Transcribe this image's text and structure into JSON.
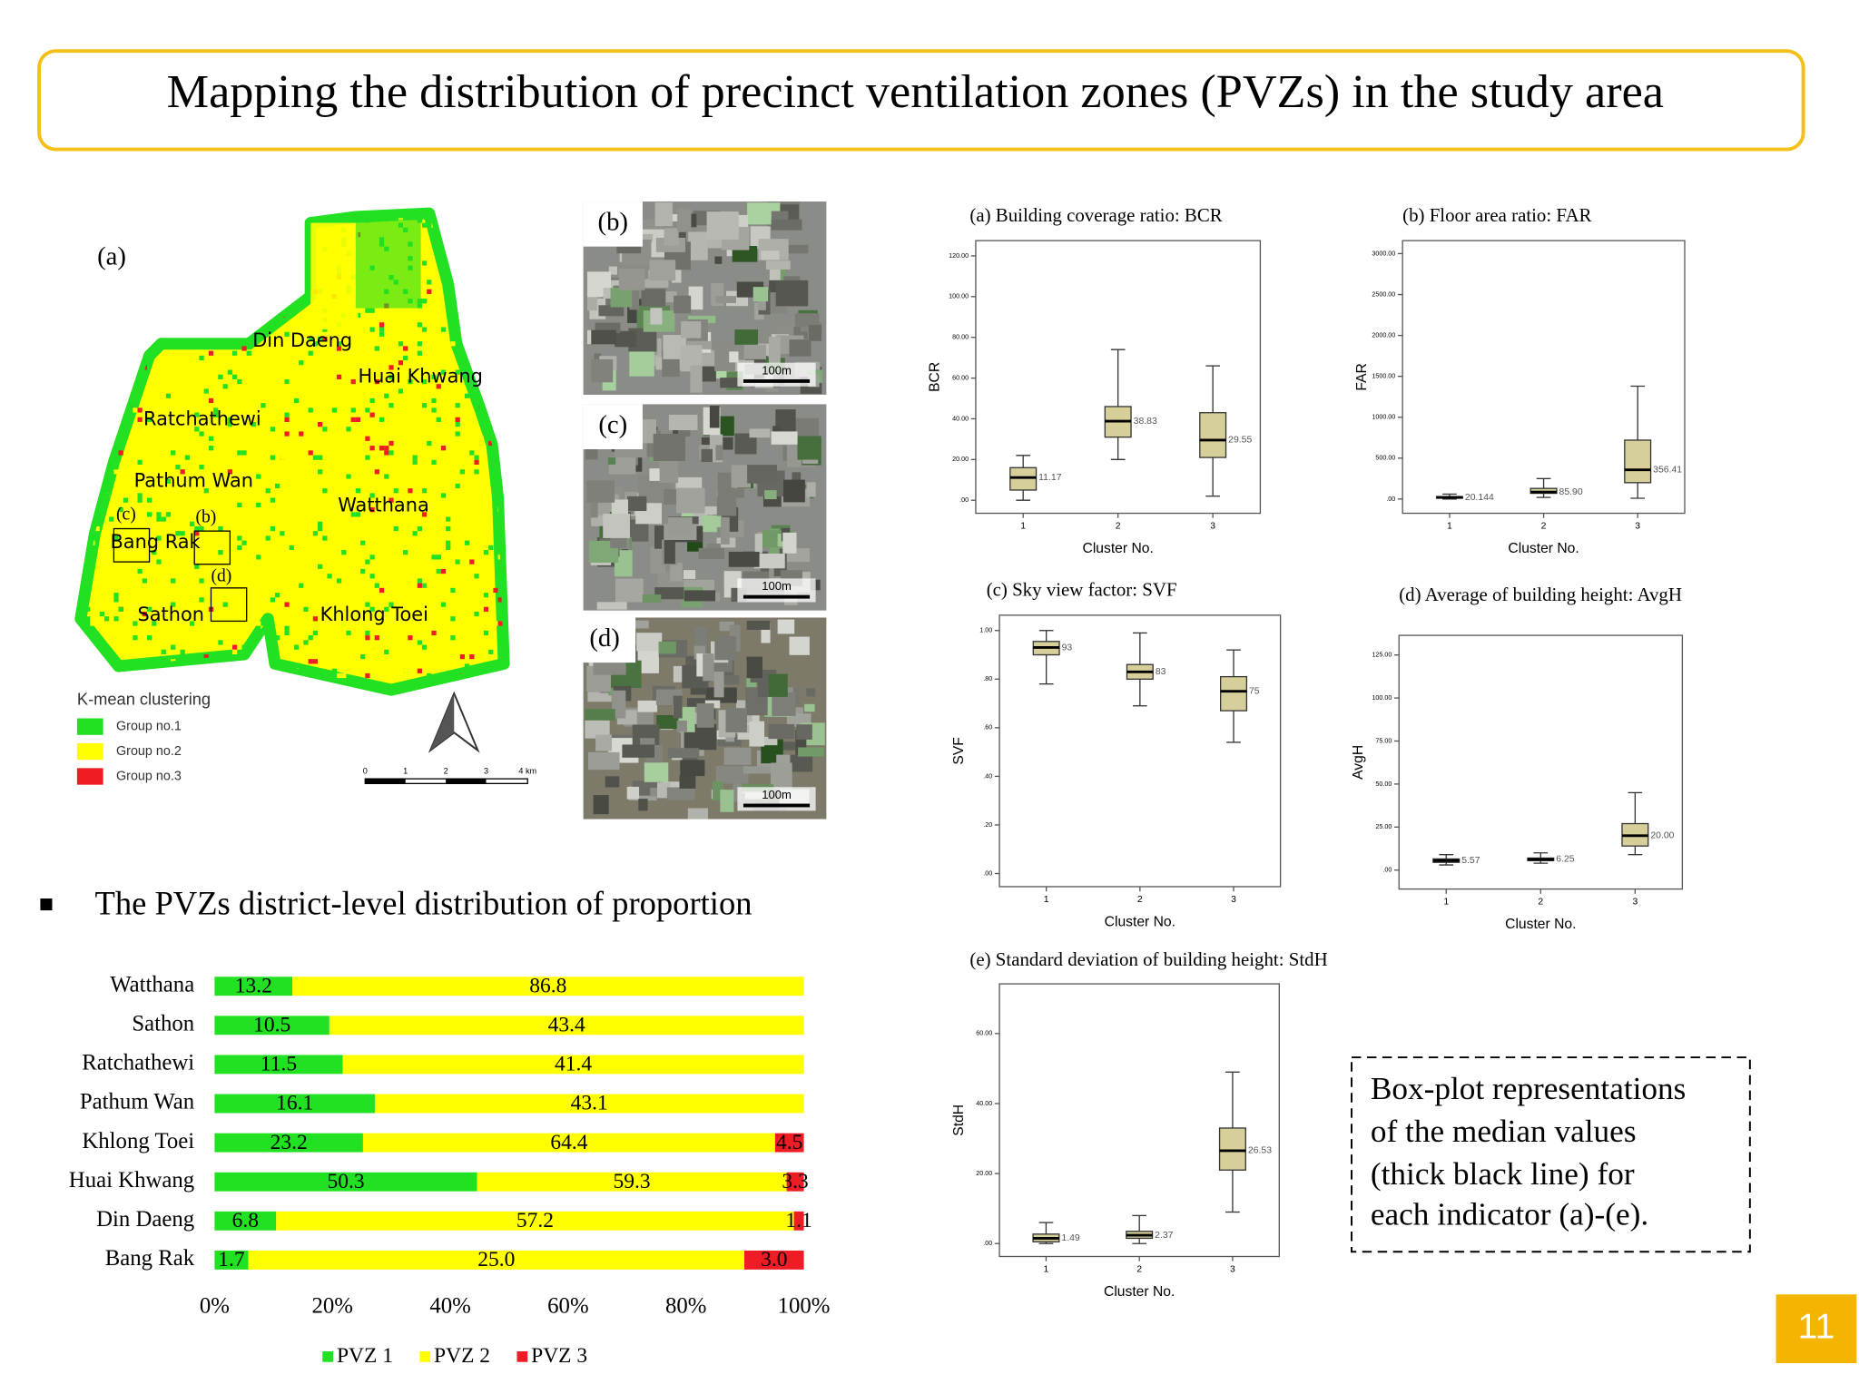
{
  "header": {
    "title": "Mapping the distribution of precinct ventilation zones (PVZs) in the study area"
  },
  "map": {
    "panel_label": "(a)",
    "districts": [
      "Din Daeng",
      "Huai Khwang",
      "Ratchathewi",
      "Pathum Wan",
      "Watthana",
      "Bang Rak",
      "Sathon",
      "Khlong Toei"
    ],
    "inset_labels": [
      "(c)",
      "(b)",
      "(d)"
    ],
    "legend_title": "K-mean clustering",
    "legend": [
      {
        "name": "Group no.1",
        "color": "#22e022"
      },
      {
        "name": "Group no.2",
        "color": "#ffff00"
      },
      {
        "name": "Group no.3",
        "color": "#ee1c24"
      }
    ],
    "scale_labels": [
      "0",
      "1",
      "2",
      "3",
      "4 km"
    ]
  },
  "photos": [
    {
      "label": "(b)",
      "scale": "100m"
    },
    {
      "label": "(c)",
      "scale": "100m"
    },
    {
      "label": "(d)",
      "scale": "100m"
    }
  ],
  "bullet": "The PVZs district-level distribution of proportion",
  "chart_data": [
    {
      "type": "bar",
      "orientation": "horizontal",
      "stack": "percent",
      "categories": [
        "Watthana",
        "Sathon",
        "Ratchathewi",
        "Pathum Wan",
        "Khlong Toei",
        "Huai Khwang",
        "Din Daeng",
        "Bang Rak"
      ],
      "series": [
        {
          "name": "PVZ 1",
          "color": "#22e022",
          "values": [
            13.2,
            10.5,
            11.5,
            16.1,
            23.2,
            50.3,
            6.8,
            1.7
          ],
          "value_labels": [
            "13.2",
            "10.5",
            "11.5",
            "16.1",
            "23.2",
            "50.3",
            "6.8",
            "1.7"
          ]
        },
        {
          "name": "PVZ 2",
          "color": "#ffff00",
          "values": [
            86.8,
            43.4,
            41.4,
            43.1,
            64.4,
            59.3,
            57.2,
            25
          ],
          "value_labels": [
            "86.8",
            "43.4",
            "41.4",
            "43.1",
            "64.4",
            "59.3",
            "57.2",
            "25.0"
          ]
        },
        {
          "name": "PVZ 3",
          "color": "#ee1c24",
          "values": [
            null,
            null,
            null,
            null,
            4.5,
            3.3,
            1.1,
            3
          ],
          "value_labels": [
            null,
            null,
            null,
            null,
            "4.5",
            "3.3",
            "1.1",
            "3.0"
          ]
        }
      ],
      "xlim": [
        0,
        100
      ],
      "xticks": [
        {
          "value": 0,
          "label": "0%"
        },
        {
          "value": 20,
          "label": "20%"
        },
        {
          "value": 40,
          "label": "40%"
        },
        {
          "value": 60,
          "label": "60%"
        },
        {
          "value": 80,
          "label": "80%"
        },
        {
          "value": 100,
          "label": "100%"
        }
      ],
      "legend": "bottom"
    },
    {
      "type": "box",
      "title": "(a) Building coverage ratio: BCR",
      "y_label": "BCR",
      "x_label": "Cluster No.",
      "categories": [
        "1",
        "2",
        "3"
      ],
      "color": "#d6cf9a",
      "median": [
        11.17,
        38.83,
        29.55
      ],
      "median_labels": [
        "11.17",
        "38.83",
        "29.55"
      ],
      "q1": [
        5,
        31,
        21
      ],
      "q3": [
        16,
        46,
        43
      ],
      "whisker_low": [
        0,
        20,
        2
      ],
      "whisker_high": [
        22,
        74,
        66
      ],
      "ylim": [
        -6.4,
        127.5
      ],
      "yticks": [
        {
          "value": 0,
          "label": ".00"
        },
        {
          "value": 20,
          "label": "20.00"
        },
        {
          "value": 40,
          "label": "40.00"
        },
        {
          "value": 60,
          "label": "60.00"
        },
        {
          "value": 80,
          "label": "80.00"
        },
        {
          "value": 100,
          "label": "100.00"
        },
        {
          "value": 120,
          "label": "120.00"
        }
      ]
    },
    {
      "type": "box",
      "title": "(b) Floor area ratio: FAR",
      "y_label": "FAR",
      "x_label": "Cluster No.",
      "categories": [
        "1",
        "2",
        "3"
      ],
      "color": "#d6cf9a",
      "median": [
        20.144,
        85.9,
        356.41
      ],
      "median_labels": [
        "20.144",
        "85.90",
        "356.41"
      ],
      "q1": [
        10,
        70,
        200
      ],
      "q3": [
        30,
        130,
        720
      ],
      "whisker_low": [
        0,
        20,
        10
      ],
      "whisker_high": [
        60,
        250,
        1380
      ],
      "ylim": [
        -174,
        3159
      ],
      "yticks": [
        {
          "value": 0,
          "label": ".00"
        },
        {
          "value": 500,
          "label": "500.00"
        },
        {
          "value": 1000,
          "label": "1000.00"
        },
        {
          "value": 1500,
          "label": "1500.00"
        },
        {
          "value": 2000,
          "label": "2000.00"
        },
        {
          "value": 2500,
          "label": "2500.00"
        },
        {
          "value": 3000,
          "label": "3000.00"
        }
      ]
    },
    {
      "type": "box",
      "title": "(c) Sky view factor: SVF",
      "y_label": "SVF",
      "x_label": "Cluster No.",
      "categories": [
        "1",
        "2",
        "3"
      ],
      "color": "#d6cf9a",
      "median": [
        0.93,
        0.83,
        0.75
      ],
      "median_labels": [
        "93",
        "83",
        "75"
      ],
      "q1": [
        0.9,
        0.8,
        0.67
      ],
      "q3": [
        0.955,
        0.86,
        0.81
      ],
      "whisker_low": [
        0.78,
        0.69,
        0.54
      ],
      "whisker_high": [
        1,
        0.99,
        0.92
      ],
      "ylim": [
        -0.054,
        1.063
      ],
      "yticks": [
        {
          "value": 0,
          "label": ".00"
        },
        {
          "value": 0.2,
          "label": ".20"
        },
        {
          "value": 0.4,
          "label": ".40"
        },
        {
          "value": 0.6,
          "label": ".60"
        },
        {
          "value": 0.8,
          "label": ".80"
        },
        {
          "value": 1,
          "label": "1.00"
        }
      ]
    },
    {
      "type": "box",
      "title": "(d) Average of building height: AvgH",
      "y_label": "AvgH",
      "x_label": "Cluster No.",
      "categories": [
        "1",
        "2",
        "3"
      ],
      "color": "#d6cf9a",
      "median": [
        5.57,
        6.25,
        20
      ],
      "median_labels": [
        "5.57",
        "6.25",
        "20.00"
      ],
      "q1": [
        4.5,
        5.5,
        14
      ],
      "q3": [
        6.5,
        7,
        27
      ],
      "whisker_low": [
        3,
        4,
        9
      ],
      "whisker_high": [
        9,
        10,
        45
      ],
      "ylim": [
        -11,
        136.4
      ],
      "yticks": [
        {
          "value": 0,
          "label": ".00"
        },
        {
          "value": 25,
          "label": "25.00"
        },
        {
          "value": 50,
          "label": "50.00"
        },
        {
          "value": 75,
          "label": "75.00"
        },
        {
          "value": 100,
          "label": "100.00"
        },
        {
          "value": 125,
          "label": "125.00"
        }
      ]
    },
    {
      "type": "box",
      "title": "(e) Standard deviation of building height: StdH",
      "y_label": "StdH",
      "x_label": "Cluster No.",
      "categories": [
        "1",
        "2",
        "3"
      ],
      "color": "#d6cf9a",
      "median": [
        1.49,
        2.37,
        26.53
      ],
      "median_labels": [
        "1.49",
        "2.37",
        "26.53"
      ],
      "q1": [
        0.5,
        1.5,
        21
      ],
      "q3": [
        2.7,
        3.5,
        33
      ],
      "whisker_low": [
        0,
        0,
        9
      ],
      "whisker_high": [
        6,
        8,
        49
      ],
      "ylim": [
        -3.7,
        74.2
      ],
      "yticks": [
        {
          "value": 0,
          "label": ".00"
        },
        {
          "value": 20,
          "label": "20.00"
        },
        {
          "value": 40,
          "label": "40.00"
        },
        {
          "value": 60,
          "label": "60.00"
        }
      ]
    }
  ],
  "note": [
    "Box-plot representations",
    "of the median values",
    "(thick black line) for",
    "each indicator (a)-(e)."
  ],
  "page_number": "11"
}
